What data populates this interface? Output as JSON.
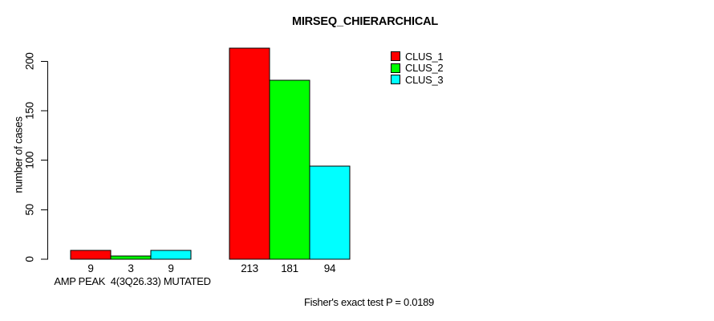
{
  "chart_data": {
    "type": "bar",
    "title": "MIRSEQ_CHIERARCHICAL",
    "ylabel": "number of cases",
    "xlabel": "",
    "ylim": [
      0,
      213
    ],
    "yticks": [
      0,
      50,
      100,
      150,
      200
    ],
    "grid": false,
    "legend_position": "top-right",
    "categories": [
      "AMP PEAK  4(3Q26.33) MUTATED",
      ""
    ],
    "series": [
      {
        "name": "CLUS_1",
        "color": "#ff0000",
        "values": [
          9,
          213
        ]
      },
      {
        "name": "CLUS_2",
        "color": "#00ff00",
        "values": [
          3,
          181
        ]
      },
      {
        "name": "CLUS_3",
        "color": "#00ffff",
        "values": [
          9,
          94
        ]
      }
    ],
    "bar_border_color": "#000000",
    "background": "#ffffff",
    "annotation": "Fisher's exact test P = 0.0189"
  }
}
